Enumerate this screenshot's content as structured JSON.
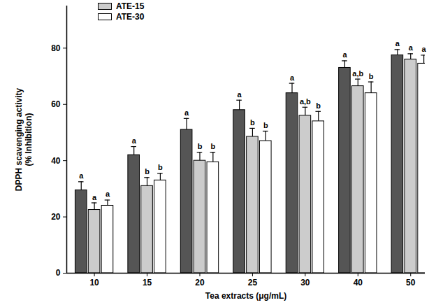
{
  "chart_data": {
    "type": "bar",
    "y_label": "DPPH scavenging activity\n(% Inhibition)",
    "x_label": "Tea extracts (μg/mL)",
    "categories": [
      "10",
      "15",
      "20",
      "25",
      "30",
      "40",
      "50"
    ],
    "series": [
      {
        "color": "#555555",
        "values": [
          29.5,
          42,
          51,
          58,
          64,
          73,
          77.5
        ],
        "errors": [
          3,
          3,
          4,
          3.5,
          3.5,
          2.5,
          2
        ],
        "letters": [
          "a",
          "a",
          "a",
          "a",
          "a",
          "a",
          "a"
        ]
      },
      {
        "name": "ATE-15",
        "color": "#cccccc",
        "values": [
          22.5,
          31,
          40,
          48.5,
          56,
          66.5,
          76
        ],
        "errors": [
          2.5,
          3,
          3,
          3,
          3,
          2.5,
          2
        ],
        "letters": [
          "a",
          "b",
          "b",
          "b",
          "a,b",
          "a,b",
          "a"
        ]
      },
      {
        "name": "ATE-30",
        "color": "#ffffff",
        "values": [
          24,
          33,
          39.5,
          47,
          54,
          64,
          74.5
        ],
        "errors": [
          2,
          2.5,
          3.5,
          3.5,
          3.5,
          4,
          3
        ],
        "letters": [
          "a",
          "b",
          "b",
          "b",
          "b",
          "b",
          "a"
        ]
      }
    ],
    "ylim": [
      0,
      95
    ],
    "yticks": [
      0,
      20,
      40,
      60,
      80
    ],
    "legend": "top-left"
  }
}
